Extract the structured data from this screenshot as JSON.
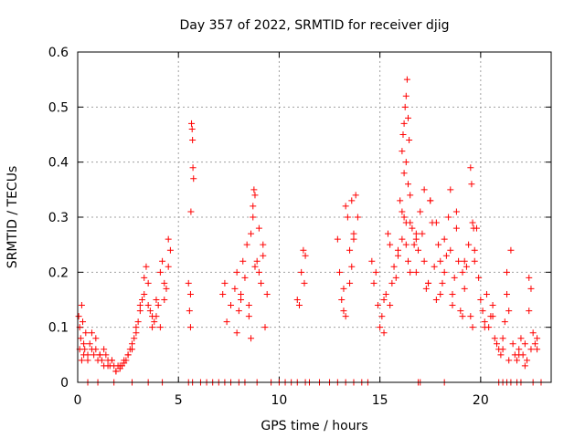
{
  "chart_data": {
    "type": "scatter",
    "title": "Day 357 of 2022, SRMTID for receiver djig",
    "xlabel": "GPS time / hours",
    "ylabel": "SRMTID / TECUs",
    "xlim": [
      0,
      23.5
    ],
    "ylim": [
      0,
      0.6
    ],
    "xticks": [
      0,
      5,
      10,
      15,
      20
    ],
    "xtick_labels": [
      "0",
      "5",
      "10",
      "15",
      "20"
    ],
    "yticks": [
      0,
      0.1,
      0.2,
      0.3,
      0.4,
      0.5,
      0.6
    ],
    "ytick_labels": [
      "0",
      "0.1",
      "0.2",
      "0.3",
      "0.4",
      "0.5",
      "0.6"
    ],
    "grid": true,
    "marker": "+",
    "marker_color": "#ff0000",
    "series": [
      {
        "name": "SRMTID",
        "x": [
          0.05,
          0.1,
          0.15,
          0.2,
          0.25,
          0.3,
          0.35,
          0.4,
          0.5,
          0.6,
          0.7,
          0.8,
          0.9,
          1.0,
          1.1,
          1.2,
          1.3,
          1.4,
          1.5,
          1.6,
          1.7,
          1.8,
          1.9,
          2.0,
          2.1,
          2.2,
          2.3,
          2.4,
          2.5,
          2.6,
          2.7,
          2.8,
          2.9,
          3.0,
          3.1,
          3.2,
          3.3,
          3.4,
          3.5,
          3.6,
          3.7,
          3.8,
          3.9,
          4.0,
          4.1,
          4.2,
          4.3,
          4.4,
          4.5,
          4.6,
          0.1,
          0.2,
          0.3,
          0.5,
          0.7,
          0.9,
          1.1,
          1.3,
          1.5,
          1.7,
          1.9,
          2.1,
          2.3,
          2.5,
          2.7,
          2.9,
          3.1,
          3.3,
          3.5,
          3.7,
          3.9,
          4.1,
          4.3,
          4.5,
          5.5,
          5.55,
          5.6,
          5.62,
          5.65,
          5.7,
          5.72,
          5.75,
          5.6,
          5.68,
          7.2,
          7.3,
          7.4,
          7.6,
          7.8,
          7.9,
          8.0,
          8.1,
          8.2,
          8.3,
          8.4,
          8.5,
          8.6,
          8.7,
          8.8,
          8.9,
          9.0,
          9.1,
          9.2,
          9.3,
          9.4,
          8.7,
          8.75,
          8.8,
          8.5,
          8.6,
          9.0,
          9.2,
          7.9,
          8.1,
          10.9,
          11.0,
          11.1,
          11.2,
          11.25,
          11.3,
          12.9,
          13.0,
          13.1,
          13.2,
          13.3,
          13.4,
          13.5,
          13.6,
          13.7,
          13.8,
          13.9,
          13.3,
          13.5,
          13.7,
          13.2,
          13.6,
          14.6,
          14.7,
          14.8,
          14.9,
          15.0,
          15.1,
          15.2,
          15.3,
          15.4,
          15.5,
          15.6,
          15.7,
          15.8,
          15.9,
          16.0,
          16.1,
          16.2,
          16.3,
          16.4,
          16.5,
          16.6,
          16.7,
          16.8,
          16.9,
          17.0,
          17.1,
          17.2,
          17.3,
          17.4,
          17.5,
          17.6,
          17.7,
          17.8,
          17.9,
          18.0,
          18.1,
          18.2,
          18.3,
          18.4,
          18.5,
          18.6,
          18.7,
          18.8,
          18.9,
          19.0,
          19.1,
          19.2,
          19.3,
          19.4,
          19.5,
          19.6,
          19.7,
          19.8,
          19.9,
          16.1,
          16.15,
          16.2,
          16.25,
          16.3,
          16.35,
          16.4,
          16.45,
          16.2,
          16.3,
          16.4,
          16.1,
          16.5,
          16.3,
          16.5,
          16.8,
          17.2,
          17.5,
          17.8,
          18.2,
          18.5,
          18.8,
          19.2,
          19.5,
          19.7,
          19.55,
          19.6,
          19.65,
          15.2,
          15.5,
          15.9,
          16.8,
          17.4,
          18.0,
          18.6,
          19.1,
          20.0,
          20.1,
          20.2,
          20.3,
          20.4,
          20.5,
          20.6,
          20.7,
          20.8,
          20.9,
          21.0,
          21.1,
          21.2,
          21.3,
          21.4,
          21.5,
          21.6,
          21.7,
          21.8,
          21.9,
          22.0,
          22.1,
          22.2,
          22.3,
          22.4,
          22.5,
          22.6,
          22.7,
          22.8,
          20.2,
          20.6,
          21.1,
          21.4,
          21.9,
          22.2,
          22.5,
          22.8,
          21.3,
          22.4,
          0.5,
          1.0,
          1.8,
          2.7,
          3.5,
          4.2,
          5.5,
          5.7,
          6.1,
          6.4,
          6.7,
          7.0,
          7.3,
          7.6,
          8.0,
          8.3,
          8.9,
          9.6,
          10.0,
          10.3,
          10.6,
          10.9,
          11.3,
          11.5,
          12.0,
          12.5,
          12.9,
          13.3,
          13.7,
          14.1,
          14.4,
          16.9,
          17.0,
          18.2,
          20.9,
          21.1,
          21.3,
          21.5,
          21.8,
          22.0,
          22.6,
          23.0
        ],
        "y": [
          0.12,
          0.1,
          0.08,
          0.14,
          0.11,
          0.07,
          0.06,
          0.09,
          0.05,
          0.07,
          0.06,
          0.05,
          0.08,
          0.04,
          0.05,
          0.04,
          0.03,
          0.05,
          0.04,
          0.03,
          0.04,
          0.03,
          0.02,
          0.03,
          0.025,
          0.03,
          0.035,
          0.04,
          0.05,
          0.06,
          0.07,
          0.08,
          0.1,
          0.11,
          0.14,
          0.15,
          0.19,
          0.21,
          0.18,
          0.13,
          0.12,
          0.11,
          0.15,
          0.14,
          0.2,
          0.22,
          0.18,
          0.17,
          0.26,
          0.24,
          0.06,
          0.04,
          0.05,
          0.04,
          0.09,
          0.06,
          0.05,
          0.06,
          0.03,
          0.04,
          0.02,
          0.03,
          0.04,
          0.05,
          0.06,
          0.09,
          0.13,
          0.16,
          0.14,
          0.1,
          0.12,
          0.1,
          0.15,
          0.21,
          0.18,
          0.13,
          0.1,
          0.31,
          0.47,
          0.44,
          0.39,
          0.37,
          0.16,
          0.46,
          0.16,
          0.18,
          0.11,
          0.14,
          0.17,
          0.2,
          0.13,
          0.16,
          0.22,
          0.19,
          0.25,
          0.14,
          0.27,
          0.3,
          0.34,
          0.22,
          0.2,
          0.18,
          0.25,
          0.1,
          0.16,
          0.32,
          0.35,
          0.21,
          0.12,
          0.08,
          0.28,
          0.23,
          0.09,
          0.15,
          0.15,
          0.14,
          0.2,
          0.24,
          0.18,
          0.23,
          0.26,
          0.2,
          0.15,
          0.17,
          0.32,
          0.3,
          0.24,
          0.21,
          0.27,
          0.34,
          0.3,
          0.12,
          0.18,
          0.26,
          0.13,
          0.33,
          0.22,
          0.18,
          0.2,
          0.14,
          0.1,
          0.12,
          0.09,
          0.16,
          0.27,
          0.25,
          0.18,
          0.21,
          0.19,
          0.23,
          0.33,
          0.26,
          0.3,
          0.25,
          0.22,
          0.29,
          0.28,
          0.25,
          0.2,
          0.24,
          0.31,
          0.27,
          0.22,
          0.17,
          0.18,
          0.33,
          0.29,
          0.21,
          0.15,
          0.25,
          0.22,
          0.18,
          0.2,
          0.23,
          0.3,
          0.24,
          0.16,
          0.19,
          0.28,
          0.22,
          0.13,
          0.2,
          0.17,
          0.21,
          0.25,
          0.12,
          0.1,
          0.22,
          0.28,
          0.19,
          0.42,
          0.45,
          0.47,
          0.5,
          0.52,
          0.55,
          0.48,
          0.44,
          0.38,
          0.4,
          0.36,
          0.31,
          0.34,
          0.29,
          0.2,
          0.27,
          0.35,
          0.33,
          0.29,
          0.26,
          0.35,
          0.31,
          0.22,
          0.39,
          0.24,
          0.36,
          0.29,
          0.28,
          0.15,
          0.14,
          0.24,
          0.26,
          0.18,
          0.16,
          0.14,
          0.12,
          0.15,
          0.13,
          0.11,
          0.16,
          0.1,
          0.12,
          0.14,
          0.08,
          0.07,
          0.06,
          0.05,
          0.06,
          0.11,
          0.16,
          0.13,
          0.24,
          0.07,
          0.05,
          0.04,
          0.06,
          0.08,
          0.05,
          0.07,
          0.04,
          0.19,
          0.06,
          0.09,
          0.07,
          0.08,
          0.1,
          0.12,
          0.08,
          0.04,
          0.05,
          0.03,
          0.17,
          0.06,
          0.2,
          0.13,
          0.0,
          0.0,
          0.0,
          0.0,
          0.0,
          0.0,
          0.0,
          0.0,
          0.0,
          0.0,
          0.0,
          0.0,
          0.0,
          0.0,
          0.0,
          0.0,
          0.0,
          0.0,
          0.0,
          0.0,
          0.0,
          0.0,
          0.0,
          0.0,
          0.0,
          0.0,
          0.0,
          0.0,
          0.0,
          0.0,
          0.0,
          0.0,
          0.0,
          0.0,
          0.0,
          0.0,
          0.0,
          0.0,
          0.0,
          0.0,
          0.0,
          0.0
        ]
      }
    ]
  }
}
